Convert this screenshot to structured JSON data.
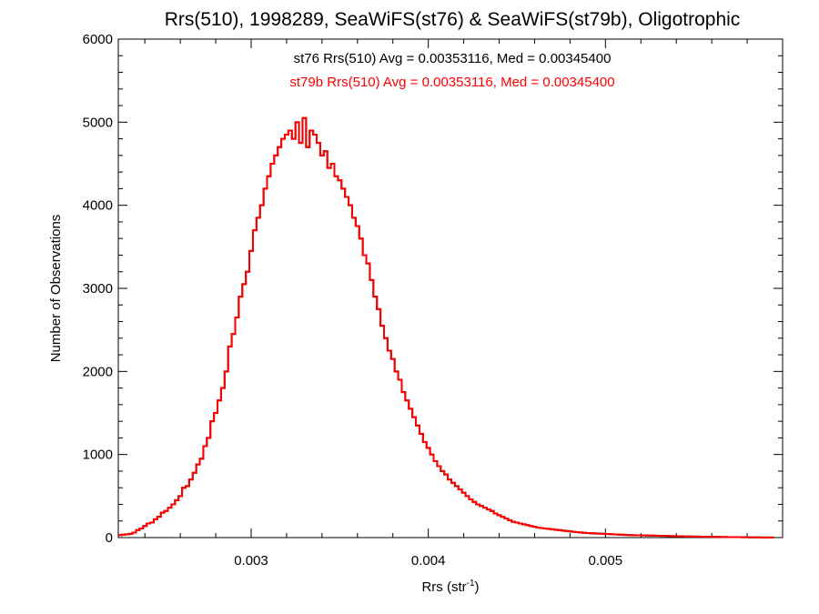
{
  "chart_data": {
    "type": "histogram-step",
    "title": "Rrs(510), 1998289, SeaWiFS(st76) & SeaWiFS(st79b), Oligotrophic",
    "xlabel": "Rrs (str",
    "xlabel_sup": "-1",
    "xlabel_close": ")",
    "ylabel": "Number of Observations",
    "xlim": [
      0.00225,
      0.006
    ],
    "ylim": [
      0,
      6000
    ],
    "x_major_ticks": [
      0.003,
      0.004,
      0.005
    ],
    "x_tick_labels": [
      "0.003",
      "0.004",
      "0.005"
    ],
    "y_major_ticks": [
      0,
      1000,
      2000,
      3000,
      4000,
      5000,
      6000
    ],
    "y_tick_labels": [
      "0",
      "1000",
      "2000",
      "3000",
      "4000",
      "5000",
      "6000"
    ],
    "annotations": [
      {
        "text": "st76 Rrs(510) Avg = 0.00353116, Med = 0.00345400",
        "color": "#000000"
      },
      {
        "text": "st79b Rrs(510) Avg = 0.00353116, Med = 0.00345400",
        "color": "#ff0000"
      }
    ],
    "bin_width": 2e-05,
    "x_start": 0.00225,
    "series": [
      {
        "name": "st76",
        "color": "#000000",
        "counts": [
          30,
          35,
          40,
          45,
          60,
          90,
          110,
          140,
          170,
          180,
          220,
          250,
          300,
          320,
          360,
          400,
          450,
          500,
          600,
          620,
          700,
          780,
          880,
          950,
          1100,
          1200,
          1400,
          1500,
          1650,
          1800,
          2000,
          2300,
          2450,
          2650,
          2900,
          3050,
          3200,
          3450,
          3700,
          3850,
          4000,
          4200,
          4350,
          4500,
          4600,
          4700,
          4800,
          4850,
          4900,
          4800,
          5000,
          4750,
          5050,
          4700,
          4900,
          4850,
          4750,
          4600,
          4650,
          4450,
          4500,
          4350,
          4300,
          4200,
          4100,
          4000,
          3850,
          3750,
          3600,
          3400,
          3300,
          3100,
          2900,
          2750,
          2550,
          2400,
          2250,
          2150,
          2000,
          1900,
          1750,
          1650,
          1550,
          1450,
          1350,
          1250,
          1150,
          1080,
          1000,
          920,
          860,
          800,
          760,
          700,
          660,
          620,
          580,
          540,
          500,
          460,
          430,
          400,
          380,
          360,
          340,
          320,
          290,
          270,
          250,
          230,
          210,
          190,
          180,
          170,
          160,
          150,
          140,
          130,
          120,
          115,
          110,
          105,
          100,
          95,
          90,
          85,
          80,
          75,
          70,
          66,
          62,
          58,
          55,
          52,
          50,
          48,
          46,
          44,
          42,
          40,
          38,
          36,
          34,
          32,
          30,
          29,
          28,
          27,
          26,
          25,
          24,
          23,
          22,
          21,
          20,
          19,
          18,
          17,
          16,
          15,
          14,
          13,
          12,
          12,
          11,
          10,
          10,
          9,
          8,
          8,
          7,
          7,
          6,
          6,
          5,
          5,
          4,
          4,
          3,
          3,
          3,
          2,
          2,
          2,
          1
        ]
      },
      {
        "name": "st79b",
        "color": "#ff0000",
        "same_as": "st76"
      }
    ]
  }
}
